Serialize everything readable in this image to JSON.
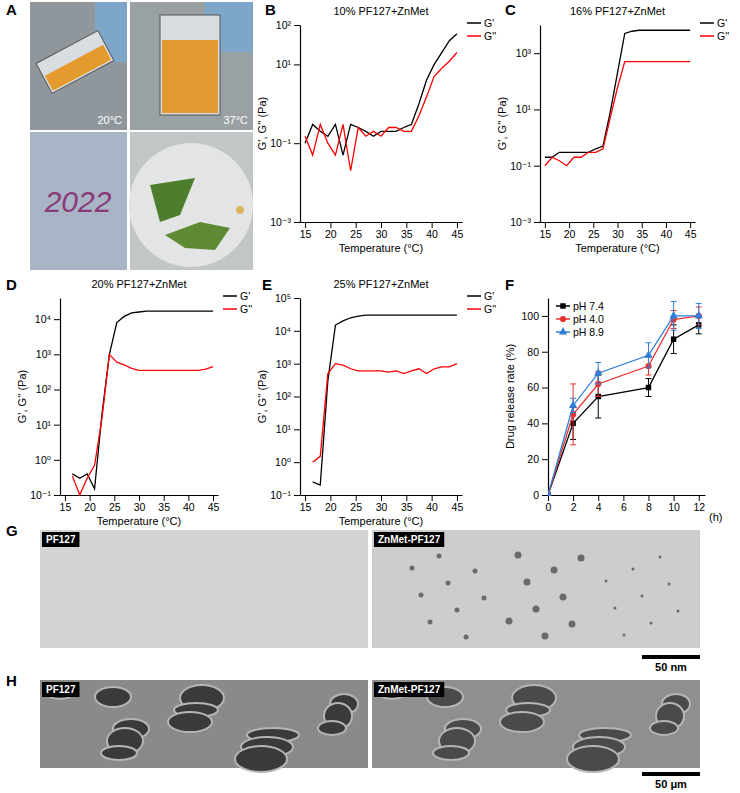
{
  "chart_data": [
    {
      "type": "line",
      "panel_label": "B",
      "title": "10% PF127+ZnMet",
      "xlabel": "Temperature (°C)",
      "ylabel": "G', G'' (Pa)",
      "log": "y",
      "legend": "upper right",
      "x": [
        15,
        16.5,
        18,
        19.5,
        21,
        22.5,
        24,
        25.5,
        27,
        28.5,
        30,
        31.5,
        33,
        34.5,
        36,
        37.5,
        39,
        40.5,
        42,
        43.5,
        45
      ],
      "xlim": [
        14,
        46
      ],
      "xticks": [
        15,
        20,
        25,
        30,
        35,
        40,
        45
      ],
      "ylim": [
        0.001,
        100
      ],
      "yticks": [
        {
          "value": 0.001,
          "label": "10⁻³"
        },
        {
          "value": 0.1,
          "label": "10⁻¹"
        },
        {
          "value": 10,
          "label": "10¹"
        },
        {
          "value": 100,
          "label": "10²"
        }
      ],
      "series": [
        {
          "name": "G'",
          "color": "#000000",
          "values": [
            0.1,
            0.3,
            0.2,
            0.15,
            0.3,
            0.05,
            0.3,
            0.25,
            0.2,
            0.15,
            0.2,
            0.2,
            0.2,
            0.25,
            0.3,
            1,
            4,
            10,
            20,
            40,
            60
          ]
        },
        {
          "name": "G''",
          "color": "#ff0000",
          "values": [
            0.15,
            0.05,
            0.3,
            0.1,
            0.05,
            0.3,
            0.02,
            0.25,
            0.15,
            0.2,
            0.15,
            0.25,
            0.25,
            0.2,
            0.2,
            0.5,
            1.5,
            5,
            8,
            12,
            20
          ]
        }
      ]
    },
    {
      "type": "line",
      "panel_label": "C",
      "title": "16% PF127+ZnMet",
      "xlabel": "Temperature (°C)",
      "ylabel": "G', G'' (Pa)",
      "log": "y",
      "legend": "upper right",
      "x": [
        15,
        16.5,
        18,
        19.5,
        21,
        22.5,
        24,
        25.5,
        27,
        28.5,
        30,
        31.5,
        33,
        34.5,
        36,
        37.5,
        39,
        40.5,
        42,
        43.5,
        45
      ],
      "xlim": [
        14,
        46
      ],
      "xticks": [
        15,
        20,
        25,
        30,
        35,
        40,
        45
      ],
      "ylim": [
        0.001,
        10000
      ],
      "yticks": [
        {
          "value": 0.001,
          "label": "10⁻³"
        },
        {
          "value": 0.1,
          "label": "10⁻¹"
        },
        {
          "value": 10,
          "label": "10¹"
        },
        {
          "value": 1000,
          "label": "10³"
        }
      ],
      "series": [
        {
          "name": "G'",
          "color": "#000000",
          "values": [
            0.2,
            0.2,
            0.3,
            0.3,
            0.3,
            0.3,
            0.3,
            0.4,
            0.5,
            8,
            200,
            5000,
            6000,
            6500,
            6500,
            6500,
            6500,
            6500,
            6500,
            6500,
            6500
          ]
        },
        {
          "name": "G''",
          "color": "#ff0000",
          "values": [
            0.1,
            0.2,
            0.15,
            0.1,
            0.2,
            0.2,
            0.3,
            0.3,
            0.4,
            5,
            60,
            500,
            500,
            500,
            500,
            500,
            500,
            500,
            500,
            500,
            500
          ]
        }
      ]
    },
    {
      "type": "line",
      "panel_label": "D",
      "title": "20% PF127+ZnMet",
      "xlabel": "Temperature (°C)",
      "ylabel": "G', G'' (Pa)",
      "log": "y",
      "legend": "upper right",
      "x": [
        16.5,
        18,
        19.5,
        21,
        22.5,
        24,
        25.5,
        27,
        28.5,
        30,
        31.5,
        33,
        34.5,
        36,
        37.5,
        39,
        40.5,
        42,
        43.5,
        45
      ],
      "xlim": [
        14,
        46
      ],
      "xticks": [
        15,
        20,
        25,
        30,
        35,
        40,
        45
      ],
      "ylim": [
        0.1,
        40000
      ],
      "yticks": [
        {
          "value": 0.1,
          "label": "10⁻¹"
        },
        {
          "value": 1,
          "label": "10⁰"
        },
        {
          "value": 10,
          "label": "10¹"
        },
        {
          "value": 100,
          "label": "10²"
        },
        {
          "value": 1000,
          "label": "10³"
        },
        {
          "value": 10000,
          "label": "10⁴"
        }
      ],
      "series": [
        {
          "name": "G'",
          "color": "#000000",
          "values": [
            0.4,
            0.3,
            0.4,
            0.15,
            20,
            1000,
            8000,
            12000,
            15000,
            16000,
            17000,
            17000,
            17000,
            17000,
            17000,
            17000,
            17000,
            17000,
            17000,
            17000
          ]
        },
        {
          "name": "G''",
          "color": "#ff0000",
          "values": [
            0.35,
            0.1,
            0.3,
            0.7,
            15,
            1000,
            600,
            500,
            400,
            350,
            350,
            350,
            350,
            350,
            350,
            350,
            350,
            350,
            380,
            450
          ]
        }
      ]
    },
    {
      "type": "line",
      "panel_label": "E",
      "title": "25% PF127+ZnMet",
      "xlabel": "Temperature (°C)",
      "ylabel": "G', G'' (Pa)",
      "log": "y",
      "legend": "upper right",
      "x": [
        16.5,
        18,
        19.5,
        21,
        22.5,
        24,
        25.5,
        27,
        28.5,
        30,
        31.5,
        33,
        34.5,
        36,
        37.5,
        39,
        40.5,
        42,
        43.5,
        45
      ],
      "xlim": [
        14,
        46
      ],
      "xticks": [
        15,
        20,
        25,
        30,
        35,
        40,
        45
      ],
      "ylim": [
        0.1,
        100000
      ],
      "yticks": [
        {
          "value": 0.1,
          "label": "10⁻¹"
        },
        {
          "value": 1,
          "label": "10⁰"
        },
        {
          "value": 10,
          "label": "10¹"
        },
        {
          "value": 100,
          "label": "10²"
        },
        {
          "value": 1000,
          "label": "10³"
        },
        {
          "value": 10000,
          "label": "10⁴"
        },
        {
          "value": 100000,
          "label": "10⁵"
        }
      ],
      "series": [
        {
          "name": "G'",
          "color": "#000000",
          "values": [
            0.25,
            0.2,
            300,
            15000,
            20000,
            25000,
            28000,
            30000,
            30000,
            30000,
            30000,
            30000,
            30000,
            30000,
            30000,
            30000,
            30000,
            30000,
            30000,
            30000
          ]
        },
        {
          "name": "G''",
          "color": "#ff0000",
          "values": [
            1,
            1.5,
            500,
            1000,
            900,
            700,
            600,
            600,
            600,
            600,
            550,
            600,
            500,
            600,
            700,
            500,
            700,
            800,
            800,
            1000
          ]
        }
      ]
    },
    {
      "type": "line",
      "panel_label": "F",
      "xlabel": "(h)",
      "ylabel": "Drug release rate (%)",
      "legend": "upper left",
      "x": [
        0,
        2,
        4,
        8,
        10,
        12
      ],
      "xlim": [
        0,
        12.5
      ],
      "xticks": [
        0,
        2,
        4,
        6,
        8,
        10,
        12
      ],
      "ylim": [
        0,
        110
      ],
      "yticks": [
        0,
        20,
        40,
        60,
        80,
        100
      ],
      "series": [
        {
          "name": "pH 7.4",
          "color": "#000000",
          "marker": "square",
          "values": [
            0,
            40,
            55,
            60,
            87,
            95
          ],
          "errors": [
            0,
            9,
            12,
            5,
            8,
            5
          ]
        },
        {
          "name": "pH 4.0",
          "color": "#e8322e",
          "marker": "circle",
          "values": [
            0,
            45,
            62,
            72,
            98,
            100
          ],
          "errors": [
            0,
            17,
            7,
            5,
            5,
            5
          ]
        },
        {
          "name": "pH 8.9",
          "color": "#2f7fd8",
          "marker": "triangle",
          "values": [
            0,
            50,
            68,
            78,
            100,
            100
          ],
          "errors": [
            0,
            4,
            6,
            7,
            8,
            7
          ]
        }
      ]
    }
  ],
  "images": [
    {
      "panel_label": "A",
      "captions": [
        "20°C",
        "37°C"
      ],
      "writing": "2022"
    },
    {
      "panel_label": "G",
      "captions": [
        "PF127",
        "ZnMet-PF127"
      ],
      "scale_bar": "50 nm"
    },
    {
      "panel_label": "H",
      "captions": [
        "PF127",
        "ZnMet-PF127"
      ],
      "scale_bar": "50 μm"
    }
  ]
}
